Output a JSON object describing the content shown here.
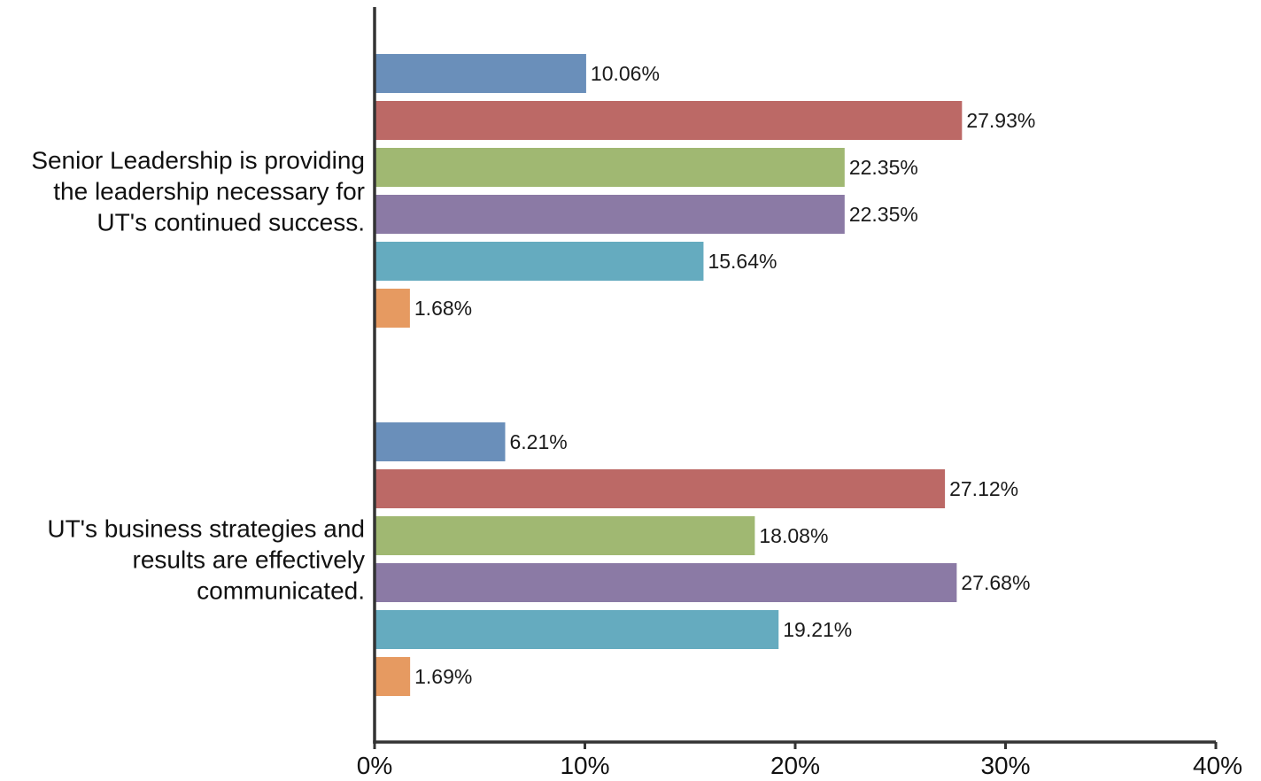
{
  "chart_data": {
    "type": "bar",
    "orientation": "horizontal",
    "title": "",
    "xlabel": "",
    "ylabel": "",
    "xlim": [
      0,
      40
    ],
    "x_ticks": [
      "0%",
      "10%",
      "20%",
      "30%",
      "40%"
    ],
    "grid": false,
    "legend": "none",
    "categories": [
      [
        "Senior Leadership is providing",
        "the leadership necessary for",
        "UT's continued success."
      ],
      [
        "UT's business strategies and",
        "results are effectively",
        "communicated."
      ]
    ],
    "series": [
      {
        "color": "#6a8fba",
        "values": [
          10.06,
          6.21
        ],
        "labels": [
          "10.06%",
          "6.21%"
        ]
      },
      {
        "color": "#bc6966",
        "values": [
          27.93,
          27.12
        ],
        "labels": [
          "27.93%",
          "27.12%"
        ]
      },
      {
        "color": "#a0b872",
        "values": [
          22.35,
          18.08
        ],
        "labels": [
          "22.35%",
          "18.08%"
        ]
      },
      {
        "color": "#8b7aa5",
        "values": [
          22.35,
          27.68
        ],
        "labels": [
          "22.35%",
          "27.68%"
        ]
      },
      {
        "color": "#65abbf",
        "values": [
          15.64,
          19.21
        ],
        "labels": [
          "15.64%",
          "19.21%"
        ]
      },
      {
        "color": "#e69a61",
        "values": [
          1.68,
          1.69
        ],
        "labels": [
          "1.68%",
          "1.69%"
        ]
      }
    ]
  }
}
